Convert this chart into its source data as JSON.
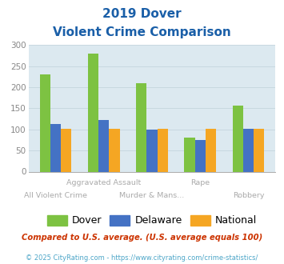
{
  "title_line1": "2019 Dover",
  "title_line2": "Violent Crime Comparison",
  "categories_top": [
    "Aggravated Assault",
    "Rape"
  ],
  "categories_bottom": [
    "All Violent Crime",
    "Murder & Mans...",
    "Robbery"
  ],
  "dover": [
    230,
    280,
    210,
    80,
    157
  ],
  "delaware": [
    112,
    123,
    100,
    75,
    101
  ],
  "national": [
    101,
    101,
    101,
    102,
    101
  ],
  "dover_color": "#7dc242",
  "delaware_color": "#4472c4",
  "national_color": "#f5a623",
  "bar_width": 0.22,
  "ylim": [
    0,
    300
  ],
  "yticks": [
    0,
    50,
    100,
    150,
    200,
    250,
    300
  ],
  "grid_color": "#c8d8e0",
  "bg_color": "#dce9f0",
  "title_color": "#1a5fa8",
  "label_color": "#aaaaaa",
  "footnote1": "Compared to U.S. average. (U.S. average equals 100)",
  "footnote2": "© 2025 CityRating.com - https://www.cityrating.com/crime-statistics/",
  "footnote1_color": "#cc3300",
  "footnote2_color": "#4da6c8"
}
